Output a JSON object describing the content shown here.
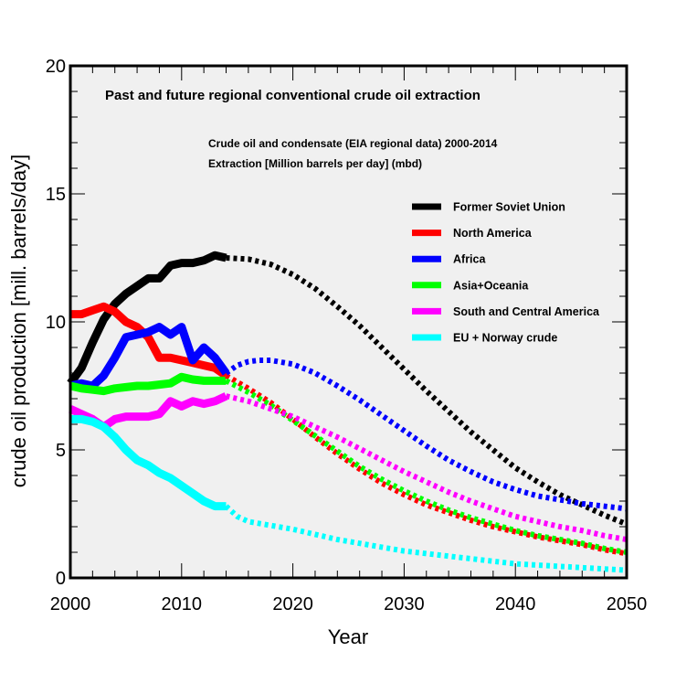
{
  "chart_data": {
    "type": "line",
    "title": "Past and future regional conventional crude oil extraction",
    "subtitle_lines": [
      "Crude oil and condensate (EIA regional data) 2000-2014",
      "Extraction [Million barrels per day] (mbd)"
    ],
    "xlabel": "Year",
    "ylabel": "crude oil production [mill. barrels/day]",
    "xlim": [
      2000,
      2050
    ],
    "ylim": [
      0,
      20
    ],
    "xticks": [
      2000,
      2010,
      2020,
      2030,
      2040,
      2050
    ],
    "yticks": [
      0,
      5,
      10,
      15,
      20
    ],
    "legend_position": "upper-right",
    "series": [
      {
        "name": "Former Soviet Union",
        "color": "#000000",
        "historical": [
          [
            2000,
            7.6
          ],
          [
            2001,
            8.2
          ],
          [
            2002,
            9.2
          ],
          [
            2003,
            10.1
          ],
          [
            2004,
            10.7
          ],
          [
            2005,
            11.1
          ],
          [
            2006,
            11.4
          ],
          [
            2007,
            11.7
          ],
          [
            2008,
            11.7
          ],
          [
            2009,
            12.2
          ],
          [
            2010,
            12.3
          ],
          [
            2011,
            12.3
          ],
          [
            2012,
            12.4
          ],
          [
            2013,
            12.6
          ],
          [
            2014,
            12.5
          ]
        ],
        "projection": [
          [
            2014,
            12.5
          ],
          [
            2016,
            12.45
          ],
          [
            2018,
            12.25
          ],
          [
            2020,
            11.85
          ],
          [
            2022,
            11.3
          ],
          [
            2024,
            10.6
          ],
          [
            2026,
            9.85
          ],
          [
            2028,
            9.0
          ],
          [
            2030,
            8.15
          ],
          [
            2032,
            7.3
          ],
          [
            2034,
            6.5
          ],
          [
            2036,
            5.7
          ],
          [
            2038,
            5.0
          ],
          [
            2040,
            4.3
          ],
          [
            2042,
            3.75
          ],
          [
            2044,
            3.25
          ],
          [
            2046,
            2.85
          ],
          [
            2048,
            2.45
          ],
          [
            2050,
            2.1
          ]
        ]
      },
      {
        "name": "North America",
        "color": "#ff0000",
        "historical": [
          [
            2000,
            10.3
          ],
          [
            2001,
            10.3
          ],
          [
            2002,
            10.45
          ],
          [
            2003,
            10.6
          ],
          [
            2004,
            10.4
          ],
          [
            2005,
            10.0
          ],
          [
            2006,
            9.8
          ],
          [
            2007,
            9.4
          ],
          [
            2008,
            8.6
          ],
          [
            2009,
            8.6
          ],
          [
            2010,
            8.5
          ],
          [
            2011,
            8.4
          ],
          [
            2012,
            8.3
          ],
          [
            2013,
            8.2
          ],
          [
            2014,
            7.9
          ]
        ],
        "projection": [
          [
            2014,
            7.9
          ],
          [
            2016,
            7.4
          ],
          [
            2018,
            6.85
          ],
          [
            2020,
            6.2
          ],
          [
            2022,
            5.5
          ],
          [
            2024,
            4.85
          ],
          [
            2026,
            4.25
          ],
          [
            2028,
            3.7
          ],
          [
            2030,
            3.25
          ],
          [
            2032,
            2.85
          ],
          [
            2034,
            2.55
          ],
          [
            2036,
            2.25
          ],
          [
            2038,
            2.0
          ],
          [
            2040,
            1.8
          ],
          [
            2042,
            1.6
          ],
          [
            2044,
            1.45
          ],
          [
            2046,
            1.3
          ],
          [
            2048,
            1.1
          ],
          [
            2050,
            0.95
          ]
        ]
      },
      {
        "name": "Africa",
        "color": "#0000ff",
        "historical": [
          [
            2000,
            7.5
          ],
          [
            2001,
            7.6
          ],
          [
            2002,
            7.5
          ],
          [
            2003,
            7.9
          ],
          [
            2004,
            8.6
          ],
          [
            2005,
            9.4
          ],
          [
            2006,
            9.5
          ],
          [
            2007,
            9.6
          ],
          [
            2008,
            9.8
          ],
          [
            2009,
            9.5
          ],
          [
            2010,
            9.8
          ],
          [
            2011,
            8.5
          ],
          [
            2012,
            9.0
          ],
          [
            2013,
            8.6
          ],
          [
            2014,
            8.0
          ]
        ],
        "projection": [
          [
            2014,
            8.0
          ],
          [
            2015,
            8.3
          ],
          [
            2016,
            8.45
          ],
          [
            2017,
            8.5
          ],
          [
            2018,
            8.5
          ],
          [
            2020,
            8.35
          ],
          [
            2022,
            8.0
          ],
          [
            2024,
            7.5
          ],
          [
            2026,
            6.95
          ],
          [
            2028,
            6.35
          ],
          [
            2030,
            5.75
          ],
          [
            2032,
            5.15
          ],
          [
            2034,
            4.6
          ],
          [
            2036,
            4.15
          ],
          [
            2038,
            3.75
          ],
          [
            2040,
            3.45
          ],
          [
            2042,
            3.2
          ],
          [
            2044,
            3.05
          ],
          [
            2046,
            2.9
          ],
          [
            2048,
            2.8
          ],
          [
            2050,
            2.7
          ]
        ]
      },
      {
        "name": "Asia+Oceania",
        "color": "#00ff00",
        "historical": [
          [
            2000,
            7.5
          ],
          [
            2001,
            7.4
          ],
          [
            2002,
            7.35
          ],
          [
            2003,
            7.3
          ],
          [
            2004,
            7.4
          ],
          [
            2005,
            7.45
          ],
          [
            2006,
            7.5
          ],
          [
            2007,
            7.5
          ],
          [
            2008,
            7.55
          ],
          [
            2009,
            7.6
          ],
          [
            2010,
            7.85
          ],
          [
            2011,
            7.75
          ],
          [
            2012,
            7.7
          ],
          [
            2013,
            7.7
          ],
          [
            2014,
            7.7
          ]
        ],
        "projection": [
          [
            2014,
            7.7
          ],
          [
            2016,
            7.25
          ],
          [
            2018,
            6.75
          ],
          [
            2020,
            6.15
          ],
          [
            2022,
            5.55
          ],
          [
            2024,
            4.95
          ],
          [
            2026,
            4.35
          ],
          [
            2028,
            3.85
          ],
          [
            2030,
            3.4
          ],
          [
            2032,
            3.0
          ],
          [
            2034,
            2.65
          ],
          [
            2036,
            2.35
          ],
          [
            2038,
            2.1
          ],
          [
            2040,
            1.85
          ],
          [
            2042,
            1.65
          ],
          [
            2044,
            1.5
          ],
          [
            2046,
            1.35
          ],
          [
            2048,
            1.15
          ],
          [
            2050,
            1.0
          ]
        ]
      },
      {
        "name": "South and Central America",
        "color": "#ff00ff",
        "historical": [
          [
            2000,
            6.6
          ],
          [
            2001,
            6.4
          ],
          [
            2002,
            6.2
          ],
          [
            2003,
            5.9
          ],
          [
            2004,
            6.2
          ],
          [
            2005,
            6.3
          ],
          [
            2006,
            6.3
          ],
          [
            2007,
            6.3
          ],
          [
            2008,
            6.4
          ],
          [
            2009,
            6.9
          ],
          [
            2010,
            6.7
          ],
          [
            2011,
            6.9
          ],
          [
            2012,
            6.8
          ],
          [
            2013,
            6.9
          ],
          [
            2014,
            7.1
          ]
        ],
        "projection": [
          [
            2014,
            7.1
          ],
          [
            2016,
            6.9
          ],
          [
            2018,
            6.6
          ],
          [
            2020,
            6.3
          ],
          [
            2022,
            5.9
          ],
          [
            2024,
            5.5
          ],
          [
            2026,
            5.05
          ],
          [
            2028,
            4.6
          ],
          [
            2030,
            4.15
          ],
          [
            2032,
            3.75
          ],
          [
            2034,
            3.35
          ],
          [
            2036,
            3.0
          ],
          [
            2038,
            2.7
          ],
          [
            2040,
            2.4
          ],
          [
            2042,
            2.2
          ],
          [
            2044,
            2.0
          ],
          [
            2046,
            1.85
          ],
          [
            2048,
            1.65
          ],
          [
            2050,
            1.5
          ]
        ]
      },
      {
        "name": "EU + Norway crude",
        "color": "#00ffff",
        "historical": [
          [
            2000,
            6.2
          ],
          [
            2001,
            6.2
          ],
          [
            2002,
            6.1
          ],
          [
            2003,
            5.9
          ],
          [
            2004,
            5.5
          ],
          [
            2005,
            5.0
          ],
          [
            2006,
            4.6
          ],
          [
            2007,
            4.4
          ],
          [
            2008,
            4.1
          ],
          [
            2009,
            3.9
          ],
          [
            2010,
            3.6
          ],
          [
            2011,
            3.3
          ],
          [
            2012,
            3.0
          ],
          [
            2013,
            2.8
          ],
          [
            2014,
            2.8
          ]
        ],
        "projection": [
          [
            2014,
            2.8
          ],
          [
            2015,
            2.4
          ],
          [
            2016,
            2.2
          ],
          [
            2018,
            2.05
          ],
          [
            2020,
            1.9
          ],
          [
            2022,
            1.7
          ],
          [
            2024,
            1.5
          ],
          [
            2026,
            1.35
          ],
          [
            2028,
            1.2
          ],
          [
            2030,
            1.05
          ],
          [
            2032,
            0.95
          ],
          [
            2034,
            0.85
          ],
          [
            2036,
            0.75
          ],
          [
            2038,
            0.65
          ],
          [
            2040,
            0.55
          ],
          [
            2042,
            0.5
          ],
          [
            2044,
            0.45
          ],
          [
            2046,
            0.4
          ],
          [
            2048,
            0.35
          ],
          [
            2050,
            0.3
          ]
        ]
      }
    ]
  }
}
